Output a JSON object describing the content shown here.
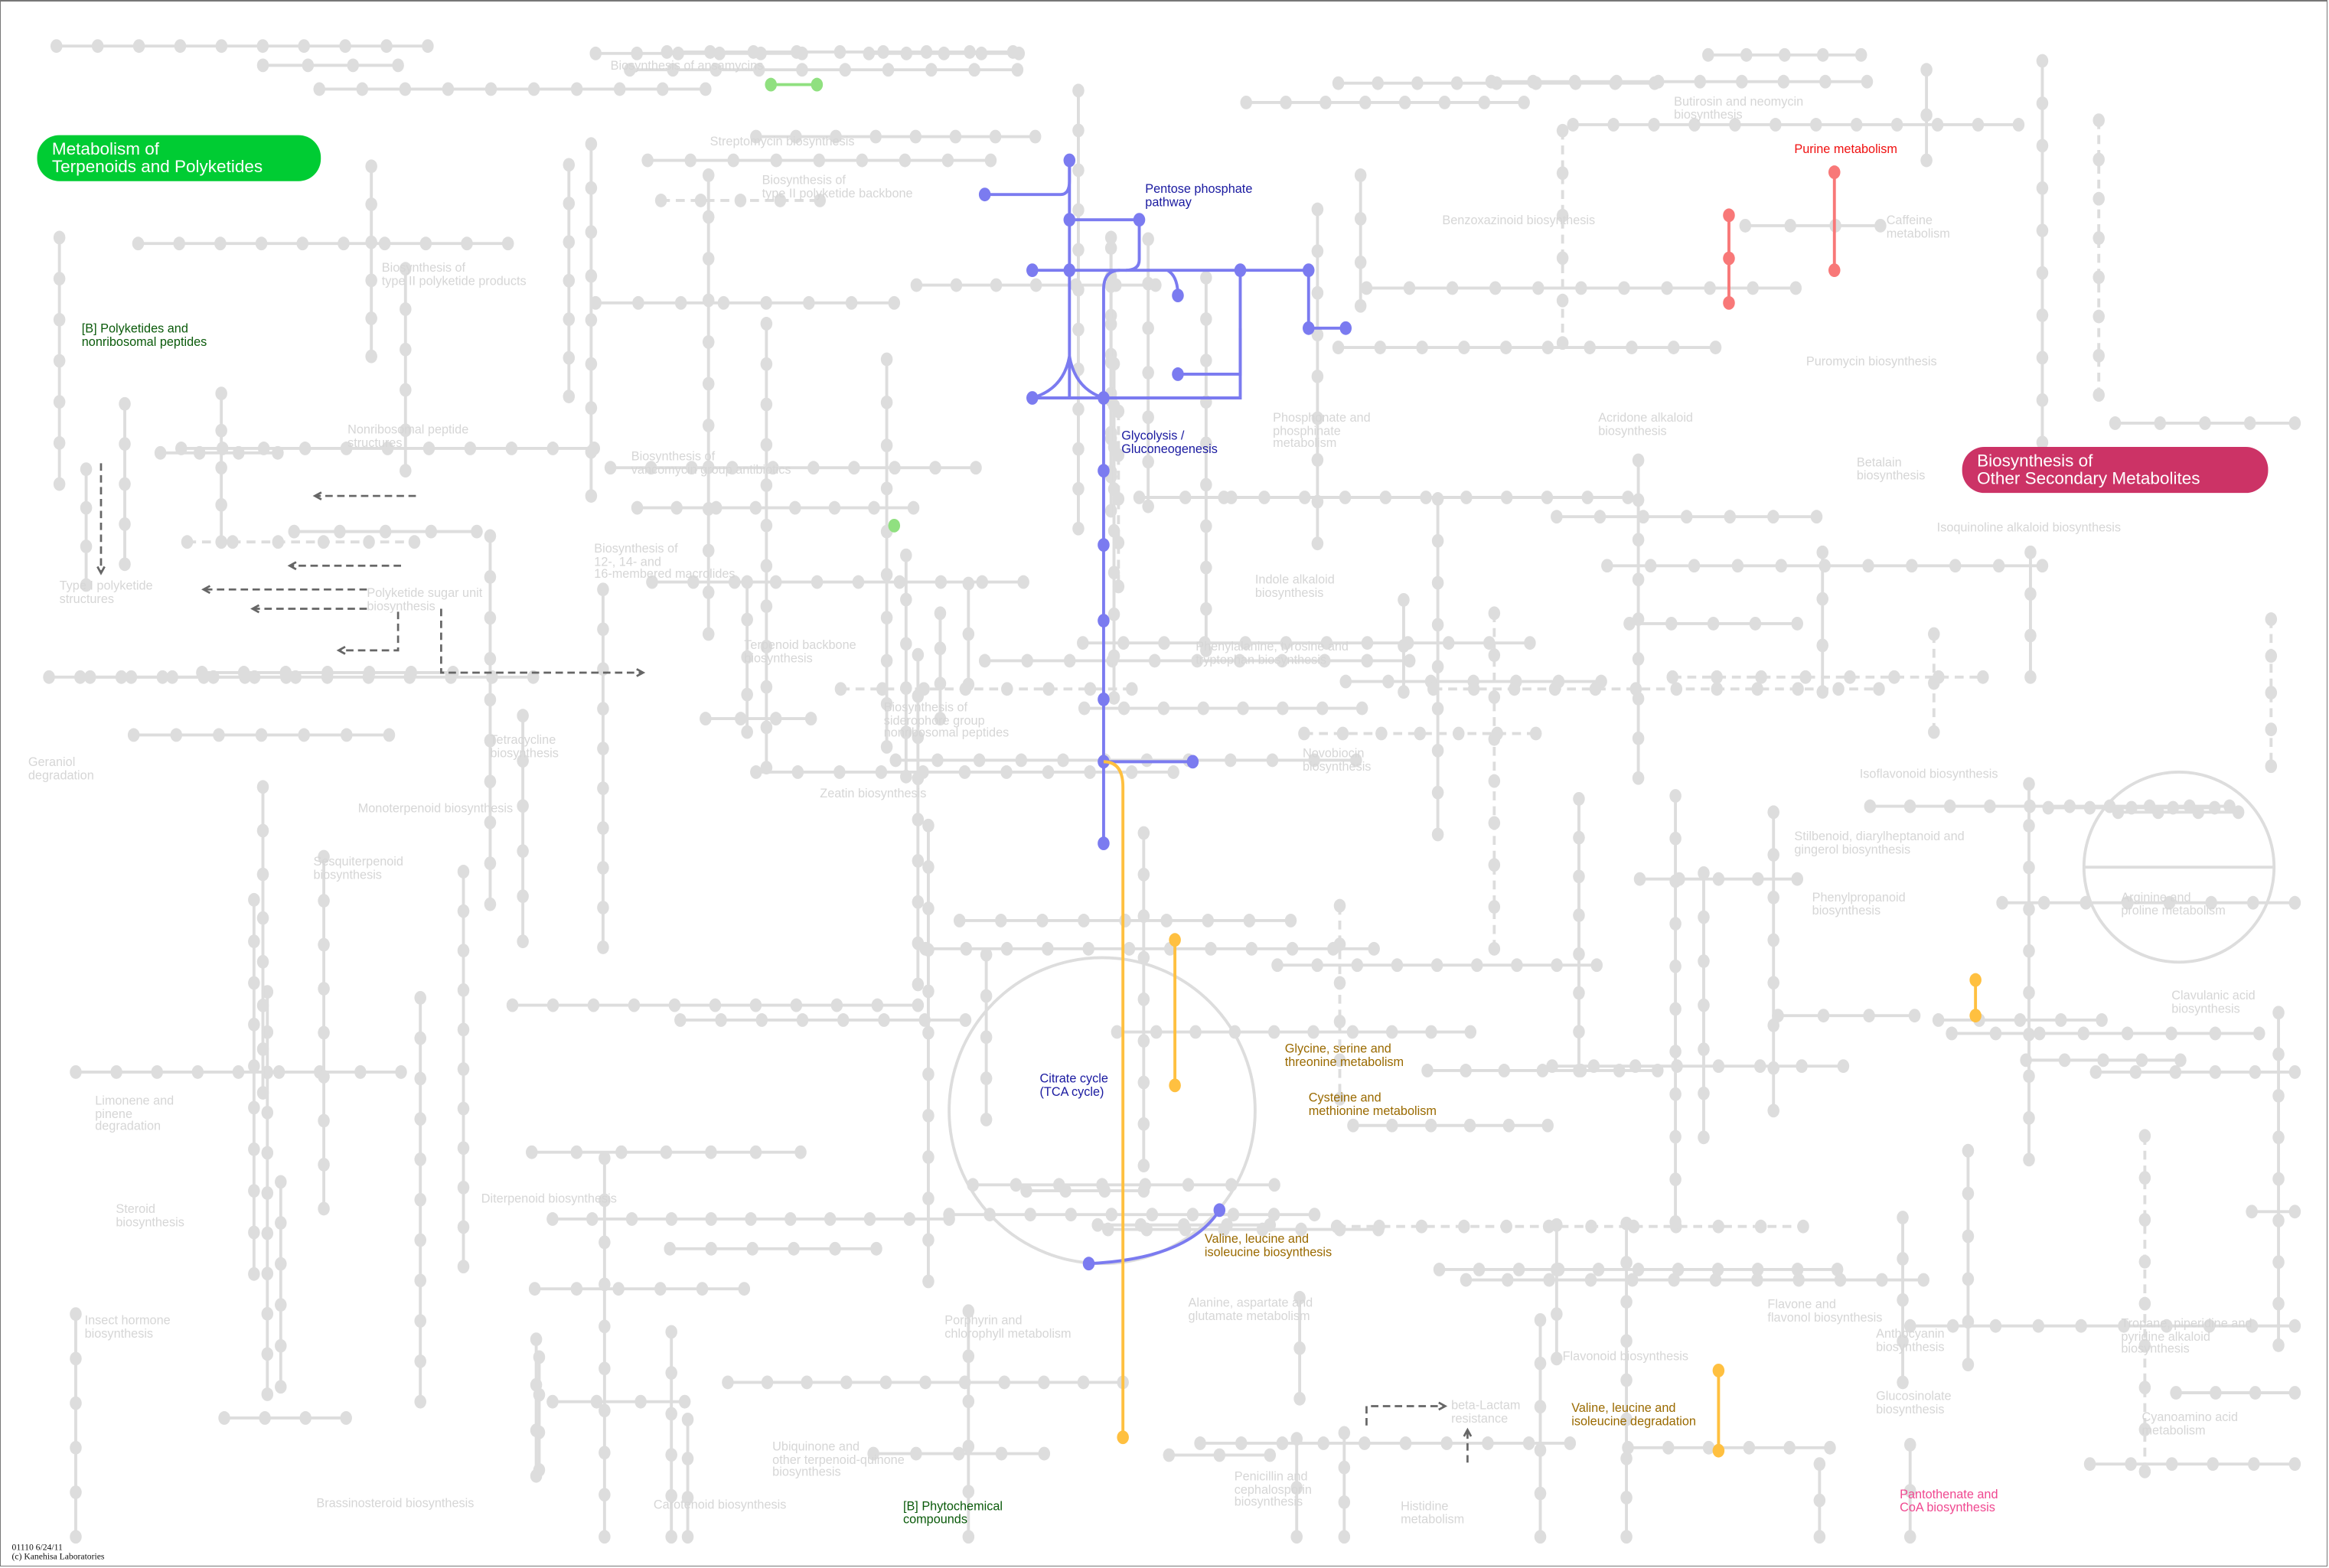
{
  "title_badges": {
    "terpenoids": {
      "text": "Metabolism of\nTerpenoids and Polyketides",
      "color": "#00cc33"
    },
    "secondary": {
      "text": "Biosynthesis of\nOther Secondary Metabolites",
      "color": "#cc3366"
    }
  },
  "colors": {
    "inactive": "#dddddd",
    "glycolysis": "#7b7bf0",
    "purine": "#f87878",
    "amino_acid": "#ffc040",
    "polyketide": "#90e080",
    "arrow": "#666666"
  },
  "labels": [
    {
      "text": "Biosynthesis of ansamycins"
    },
    {
      "text": "Butirosin and neomycin\nbiosynthesis"
    },
    {
      "text": "Streptomycin biosynthesis"
    },
    {
      "text": "Purine metabolism"
    },
    {
      "text": "Biosynthesis of\ntype II polyketide backbone"
    },
    {
      "text": "Pentose phosphate\npathway"
    },
    {
      "text": "Benzoxazinoid biosynthesis"
    },
    {
      "text": "Caffeine\nmetabolism"
    },
    {
      "text": "Biosynthesis of\ntype II polyketide products"
    },
    {
      "text": "[B] Polyketides and\nnonribosomal peptides"
    },
    {
      "text": "Puromycin biosynthesis"
    },
    {
      "text": "Phosphonate and\nphosphinate\nmetabolism"
    },
    {
      "text": "Acridone alkaloid\nbiosynthesis"
    },
    {
      "text": "Nonribosomal peptide\nstructures"
    },
    {
      "text": "Glycolysis /\nGluconeogenesis"
    },
    {
      "text": "Betalain\nbiosynthesis"
    },
    {
      "text": "Biosynthesis of\nvancomycin group antibiotics"
    },
    {
      "text": "Isoquinoline alkaloid biosynthesis"
    },
    {
      "text": "Biosynthesis of\n12-, 14- and\n16-membered macrolides"
    },
    {
      "text": "Indole alkaloid\nbiosynthesis"
    },
    {
      "text": "Type I polyketide\nstructures"
    },
    {
      "text": "Polyketide sugar unit\nbiosynthesis"
    },
    {
      "text": "Terpenoid backbone\nbiosynthesis"
    },
    {
      "text": "Phenylalanine, tyrosine and\ntryptophan biosynthesis"
    },
    {
      "text": "Biosynthesis of\nsiderophore group\nnonribosomal peptides"
    },
    {
      "text": "Novobiocin\nbiosynthesis"
    },
    {
      "text": "Tetracycline\nbiosynthesis"
    },
    {
      "text": "Geraniol\ndegradation"
    },
    {
      "text": "Isoflavonoid biosynthesis"
    },
    {
      "text": "Zeatin biosynthesis"
    },
    {
      "text": "Monoterpenoid biosynthesis"
    },
    {
      "text": "Stilbenoid, diarylheptanoid and\ngingerol biosynthesis"
    },
    {
      "text": "Sesquiterpenoid\nbiosynthesis"
    },
    {
      "text": "Phenylpropanoid\nbiosynthesis"
    },
    {
      "text": "Arginine and\nproline metabolism"
    },
    {
      "text": "Clavulanic acid\nbiosynthesis"
    },
    {
      "text": "Glycine, serine and\nthreonine metabolism"
    },
    {
      "text": "Citrate cycle\n(TCA cycle)"
    },
    {
      "text": "Limonene and\npinene\ndegradation"
    },
    {
      "text": "Cysteine and\nmethionine metabolism"
    },
    {
      "text": "Diterpenoid biosynthesis"
    },
    {
      "text": "Steroid\nbiosynthesis"
    },
    {
      "text": "Valine, leucine and\nisoleucine biosynthesis"
    },
    {
      "text": "Alanine, aspartate and\nglutamate metabolism"
    },
    {
      "text": "Flavone and\nflavonol biosynthesis"
    },
    {
      "text": "Porphyrin and\nchlorophyll metabolism"
    },
    {
      "text": "Insect hormone\nbiosynthesis"
    },
    {
      "text": "Tropane, piperidine and\npyridine alkaloid\nbiosynthesis"
    },
    {
      "text": "Anthocyanin\nbiosynthesis"
    },
    {
      "text": "Flavonoid biosynthesis"
    },
    {
      "text": "Glucosinolate\nbiosynthesis"
    },
    {
      "text": "beta-Lactam\nresistance"
    },
    {
      "text": "Valine, leucine and\nisoleucine degradation"
    },
    {
      "text": "Cyanoamino acid\nmetabolism"
    },
    {
      "text": "Ubiquinone and\nother terpenoid-quinone\nbiosynthesis"
    },
    {
      "text": "Penicillin and\ncephalosporin\nbiosynthesis"
    },
    {
      "text": "Pantothenate and\nCoA biosynthesis"
    },
    {
      "text": "Brassinosteroid biosynthesis"
    },
    {
      "text": "Carotenoid biosynthesis"
    },
    {
      "text": "[B] Phytochemical\ncompounds"
    },
    {
      "text": "Histidine\nmetabolism"
    }
  ],
  "footer": {
    "text": "01110 6/24/11\n(c) Kanehisa Laboratories"
  }
}
